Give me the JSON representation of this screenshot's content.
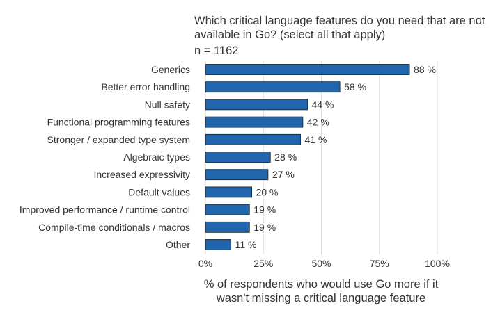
{
  "chart_data": {
    "type": "bar",
    "orientation": "horizontal",
    "title": "Which critical language features do you need that are not available in Go? (select all that apply)",
    "subtitle": "n = 1162",
    "xlabel": "% of respondents who would use Go more if it wasn't missing a critical language feature",
    "ylabel": "",
    "categories": [
      "Generics",
      "Better error handling",
      "Null safety",
      "Functional programming features",
      "Stronger / expanded type system",
      "Algebraic types",
      "Increased expressivity",
      "Default values",
      "Improved performance / runtime control",
      "Compile-time conditionals / macros",
      "Other"
    ],
    "values": [
      88,
      58,
      44,
      42,
      41,
      28,
      27,
      20,
      19,
      19,
      11
    ],
    "data_labels": [
      "88 %",
      "58 %",
      "44 %",
      "42 %",
      "41 %",
      "28 %",
      "27 %",
      "20 %",
      "19 %",
      "19 %",
      "11 %"
    ],
    "xlim": [
      0,
      100
    ],
    "xticks": [
      0,
      25,
      50,
      75,
      100
    ],
    "xtick_labels": [
      "0%",
      "25%",
      "50%",
      "75%",
      "100%"
    ],
    "grid": true,
    "colors": {
      "bar": "#2166ac",
      "bar_outline": "#1a1a1a",
      "grid": "#dcdcdc",
      "text": "#333333"
    }
  }
}
